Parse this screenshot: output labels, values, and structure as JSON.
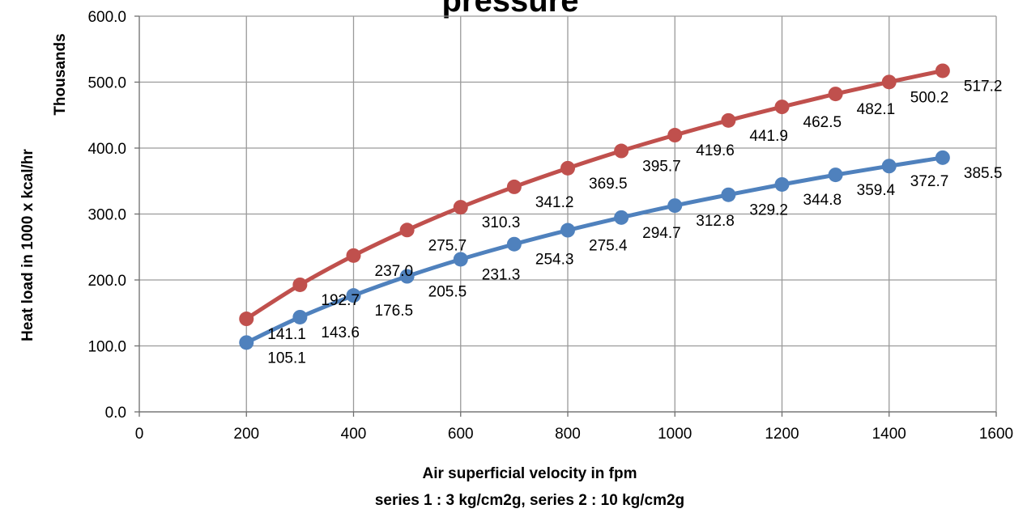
{
  "chart_data": {
    "type": "line",
    "title": "pressure",
    "xlabel": "Air superficial velocity in fpm",
    "xlabel2": "series 1 : 3 kg/cm2g, series 2 : 10 kg/cm2g",
    "ylabel": "Heat load in 1000 x kcal/hr",
    "yunit_label": "Thousands",
    "xlim": [
      0,
      1600
    ],
    "ylim": [
      0,
      600
    ],
    "x_ticks": [
      0,
      200,
      400,
      600,
      800,
      1000,
      1200,
      1400,
      1600
    ],
    "x_tick_labels": [
      "0",
      "200",
      "400",
      "600",
      "800",
      "1000",
      "1200",
      "1400",
      "1600"
    ],
    "y_ticks": [
      0,
      100,
      200,
      300,
      400,
      500,
      600
    ],
    "y_tick_labels": [
      "0.0",
      "100.0",
      "200.0",
      "300.0",
      "400.0",
      "500.0",
      "600.0"
    ],
    "grid": true,
    "legend": "none",
    "x": [
      200,
      300,
      400,
      500,
      600,
      700,
      800,
      900,
      1000,
      1100,
      1200,
      1300,
      1400,
      1500
    ],
    "series": [
      {
        "color": "#4f81bd",
        "values": [
          105.1,
          143.6,
          176.5,
          205.5,
          231.3,
          254.3,
          275.4,
          294.7,
          312.8,
          329.2,
          344.8,
          359.4,
          372.7,
          385.5
        ],
        "labels": [
          "105.1",
          "143.6",
          "176.5",
          "205.5",
          "231.3",
          "254.3",
          "275.4",
          "294.7",
          "312.8",
          "329.2",
          "344.8",
          "359.4",
          "372.7",
          "385.5"
        ]
      },
      {
        "color": "#c0504d",
        "values": [
          141.1,
          192.7,
          237.0,
          275.7,
          310.3,
          341.2,
          369.5,
          395.7,
          419.6,
          441.9,
          462.5,
          482.1,
          500.2,
          517.2
        ],
        "labels": [
          "141.1",
          "192.7",
          "237.0",
          "275.7",
          "310.3",
          "341.2",
          "369.5",
          "395.7",
          "419.6",
          "441.9",
          "462.5",
          "482.1",
          "500.2",
          "517.2"
        ]
      }
    ]
  }
}
